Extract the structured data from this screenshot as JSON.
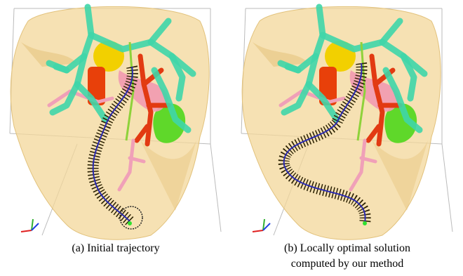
{
  "subfigures": [
    {
      "caption": [
        "(a) Initial trajectory"
      ]
    },
    {
      "caption": [
        "(b) Locally optimal solution",
        "computed by our method"
      ]
    }
  ]
}
